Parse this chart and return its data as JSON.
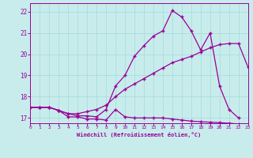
{
  "xlabel": "Windchill (Refroidissement éolien,°C)",
  "bg_color": "#c8ecec",
  "line_color": "#990099",
  "grid_color": "#aadddd",
  "xmin": 0,
  "xmax": 23,
  "ymin": 16.75,
  "ymax": 22.4,
  "yticks": [
    17,
    18,
    19,
    20,
    21,
    22
  ],
  "xticks": [
    0,
    1,
    2,
    3,
    4,
    5,
    6,
    7,
    8,
    9,
    10,
    11,
    12,
    13,
    14,
    15,
    16,
    17,
    18,
    19,
    20,
    21,
    22,
    23
  ],
  "line1_x": [
    0,
    1,
    2,
    3,
    4,
    5,
    6,
    7,
    8,
    9,
    10,
    11,
    12,
    13,
    14,
    15,
    16,
    17,
    18,
    19,
    20,
    21,
    22,
    23
  ],
  "line1_y": [
    17.5,
    17.5,
    17.5,
    17.35,
    17.05,
    17.05,
    16.95,
    16.95,
    16.9,
    17.4,
    17.05,
    17.0,
    17.0,
    17.0,
    17.0,
    16.95,
    16.9,
    16.85,
    16.82,
    16.8,
    16.78,
    16.75,
    16.72,
    16.7
  ],
  "line2_x": [
    0,
    1,
    2,
    3,
    4,
    5,
    6,
    7,
    8,
    9,
    10,
    11,
    12,
    13,
    14,
    15,
    16,
    17,
    18,
    19,
    20,
    21,
    22,
    23
  ],
  "line2_y": [
    17.5,
    17.5,
    17.5,
    17.35,
    17.2,
    17.2,
    17.3,
    17.4,
    17.6,
    18.0,
    18.35,
    18.6,
    18.85,
    19.1,
    19.35,
    19.6,
    19.75,
    19.9,
    20.1,
    20.3,
    20.45,
    20.5,
    20.5,
    19.4
  ],
  "line3_x": [
    0,
    1,
    2,
    3,
    4,
    5,
    6,
    7,
    8,
    9,
    10,
    11,
    12,
    13,
    14,
    15,
    16,
    17,
    18,
    19,
    20,
    21,
    22,
    23
  ],
  "line3_y": [
    17.5,
    17.5,
    17.5,
    17.35,
    17.2,
    17.1,
    17.1,
    17.05,
    17.4,
    18.5,
    19.0,
    19.9,
    20.4,
    20.85,
    21.1,
    22.05,
    21.75,
    21.1,
    20.2,
    21.0,
    18.5,
    17.4,
    17.0,
    null
  ]
}
